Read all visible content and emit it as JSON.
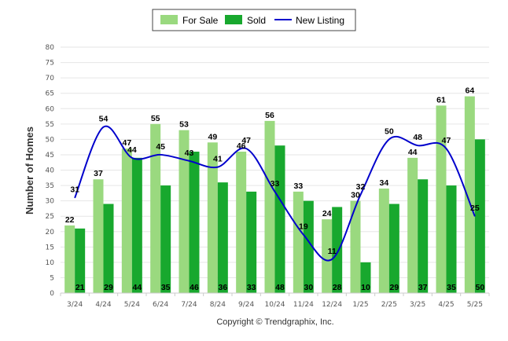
{
  "chart_data": {
    "type": "bar",
    "categories": [
      "3/24",
      "4/24",
      "5/24",
      "6/24",
      "7/24",
      "8/24",
      "9/24",
      "10/24",
      "11/24",
      "12/24",
      "1/25",
      "2/25",
      "3/25",
      "4/25",
      "5/25"
    ],
    "series": [
      {
        "name": "For Sale",
        "type": "bar",
        "color": "#9ad97f",
        "values": [
          22,
          37,
          47,
          55,
          53,
          49,
          46,
          56,
          33,
          24,
          30,
          34,
          44,
          61,
          64
        ]
      },
      {
        "name": "Sold",
        "type": "bar",
        "color": "#18a82e",
        "values": [
          21,
          29,
          44,
          35,
          46,
          36,
          33,
          48,
          30,
          28,
          10,
          29,
          37,
          35,
          50
        ]
      },
      {
        "name": "New Listing",
        "type": "line",
        "color": "#0000cc",
        "values": [
          31,
          54,
          44,
          45,
          43,
          41,
          47,
          33,
          19,
          11,
          32,
          50,
          48,
          47,
          25
        ]
      }
    ],
    "ylabel": "Number of Homes",
    "xlabel": "",
    "ylim": [
      0,
      80
    ],
    "yticks": [
      0,
      5,
      10,
      15,
      20,
      25,
      30,
      35,
      40,
      45,
      50,
      55,
      60,
      65,
      70,
      75,
      80
    ],
    "grid": true,
    "legend": "top-center"
  },
  "footer": {
    "copyright": "Copyright © Trendgraphix, Inc."
  }
}
